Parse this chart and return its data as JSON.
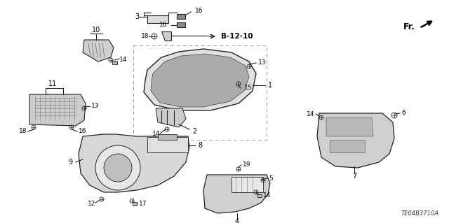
{
  "bg_color": "#ffffff",
  "diagram_code": "TE04B3710A",
  "reference_label": "B-12-10",
  "fr_label": "Fr.",
  "line_color": "#222222",
  "label_color": "#000000",
  "lw": 0.8,
  "fs": 7
}
